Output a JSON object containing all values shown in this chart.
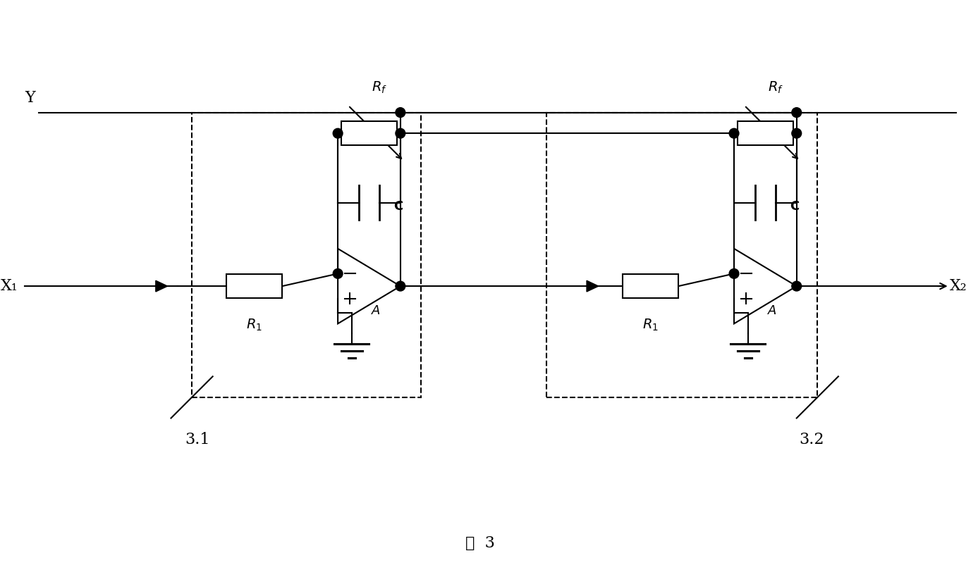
{
  "title": "图 3",
  "bg_color": "#ffffff",
  "line_color": "#000000",
  "dot_color": "#000000",
  "dash_box_color": "#000000",
  "labels": {
    "Y": "Y",
    "X1": "X₁",
    "X2": "X₂",
    "Rf": "R_f",
    "C": "C",
    "R1": "R₁",
    "A": "A",
    "fig": "图  3",
    "box1": "3.1",
    "box2": "3.2"
  },
  "figsize": [
    13.7,
    8.26
  ],
  "dpi": 100
}
